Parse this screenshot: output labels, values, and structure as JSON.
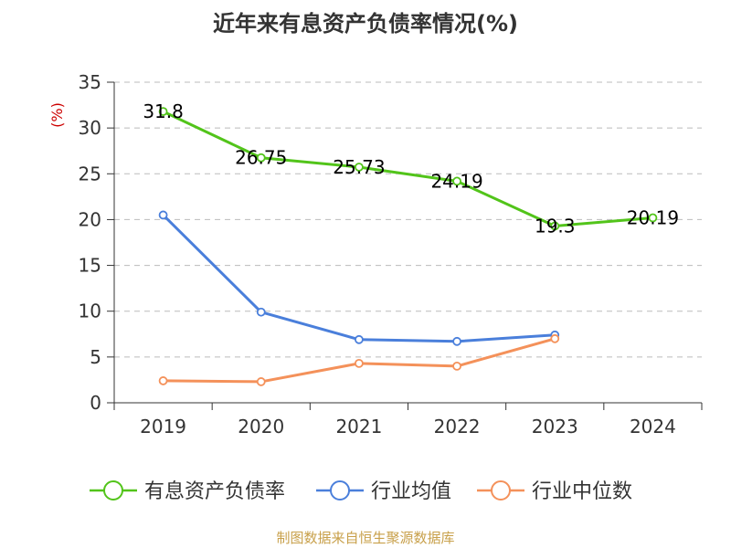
{
  "chart_data": {
    "type": "line",
    "title": "近年来有息资产负债率情况(%)",
    "ylabel": "(%)",
    "categories": [
      "2019",
      "2020",
      "2021",
      "2022",
      "2023",
      "2024"
    ],
    "ylim": [
      0,
      35
    ],
    "yticks": [
      0,
      5,
      10,
      15,
      20,
      25,
      30,
      35
    ],
    "grid": "horizontal dashed",
    "legend_position": "bottom",
    "series": [
      {
        "name": "有息资产负债率",
        "color": "#52c41a",
        "values": [
          31.8,
          26.75,
          25.73,
          24.19,
          19.3,
          20.19
        ],
        "labels": [
          "31.8",
          "26.75",
          "25.73",
          "24.19",
          "19.3",
          "20.19"
        ]
      },
      {
        "name": "行业均值",
        "color": "#4a7fdb",
        "values": [
          20.5,
          9.9,
          6.9,
          6.7,
          7.4,
          null
        ]
      },
      {
        "name": "行业中位数",
        "color": "#f4915a",
        "values": [
          2.4,
          2.3,
          4.3,
          4.0,
          7.0,
          null
        ]
      }
    ]
  },
  "source": "制图数据来自恒生聚源数据库"
}
